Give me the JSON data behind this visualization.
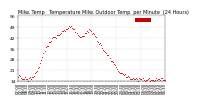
{
  "title": "Milw. Temp   Temperature Milw. Outdoor Temp",
  "title2": "per Minute  (24 Hours)",
  "bg_color": "#ffffff",
  "plot_bg": "#ffffff",
  "line_color": "#cc0000",
  "grid_color": "#999999",
  "text_color": "#000000",
  "ylim": [
    14,
    57
  ],
  "yticks": [
    14,
    21,
    28,
    35,
    42,
    49,
    56
  ],
  "ylabel_fontsize": 3.2,
  "xlabel_fontsize": 2.8,
  "title_fontsize": 3.5,
  "temperatures": [
    17,
    17,
    17,
    16,
    16,
    16,
    16,
    16,
    15,
    15,
    15,
    15,
    16,
    16,
    17,
    17,
    18,
    19,
    20,
    21,
    22,
    24,
    26,
    28,
    30,
    32,
    34,
    36,
    37,
    38,
    39,
    40,
    41,
    41,
    42,
    42,
    43,
    43,
    44,
    44,
    45,
    45,
    46,
    46,
    47,
    47,
    47,
    48,
    48,
    49,
    49,
    49,
    49,
    48,
    48,
    47,
    47,
    46,
    45,
    44,
    43,
    43,
    43,
    44,
    44,
    45,
    46,
    46,
    47,
    47,
    47,
    47,
    46,
    45,
    44,
    43,
    42,
    41,
    40,
    39,
    38,
    37,
    36,
    35,
    34,
    33,
    32,
    31,
    30,
    29,
    28,
    27,
    26,
    25,
    24,
    23,
    22,
    21,
    21,
    20,
    20,
    19,
    19,
    18,
    18,
    17,
    17,
    17,
    17,
    16,
    16,
    16,
    15,
    15,
    15,
    15,
    15,
    15,
    15,
    15,
    15,
    15,
    15,
    15,
    15,
    15,
    15,
    15,
    15,
    15,
    15,
    15,
    15,
    15,
    15,
    15,
    15,
    15,
    15,
    15,
    15,
    15,
    15,
    15
  ],
  "time_labels": [
    "07:00",
    "07:30",
    "08:00",
    "08:30",
    "09:00",
    "09:30",
    "10:00",
    "10:30",
    "11:00",
    "11:30",
    "12:00",
    "12:30",
    "13:00",
    "13:30",
    "14:00",
    "14:30",
    "15:00",
    "15:30",
    "16:00",
    "16:30",
    "17:00",
    "17:30",
    "18:00",
    "18:30",
    "19:00",
    "19:30",
    "20:00",
    "20:30",
    "21:00",
    "21:30",
    "22:00",
    "22:30",
    "23:00",
    "23:30",
    "00:00",
    "00:30",
    "01:00",
    "01:30",
    "02:00",
    "02:30",
    "03:00",
    "03:30",
    "04:00",
    "04:30",
    "05:00",
    "05:30",
    "06:00",
    "06:30"
  ],
  "highlight_rect_color": "#cc0000",
  "vgrid_count": 7
}
